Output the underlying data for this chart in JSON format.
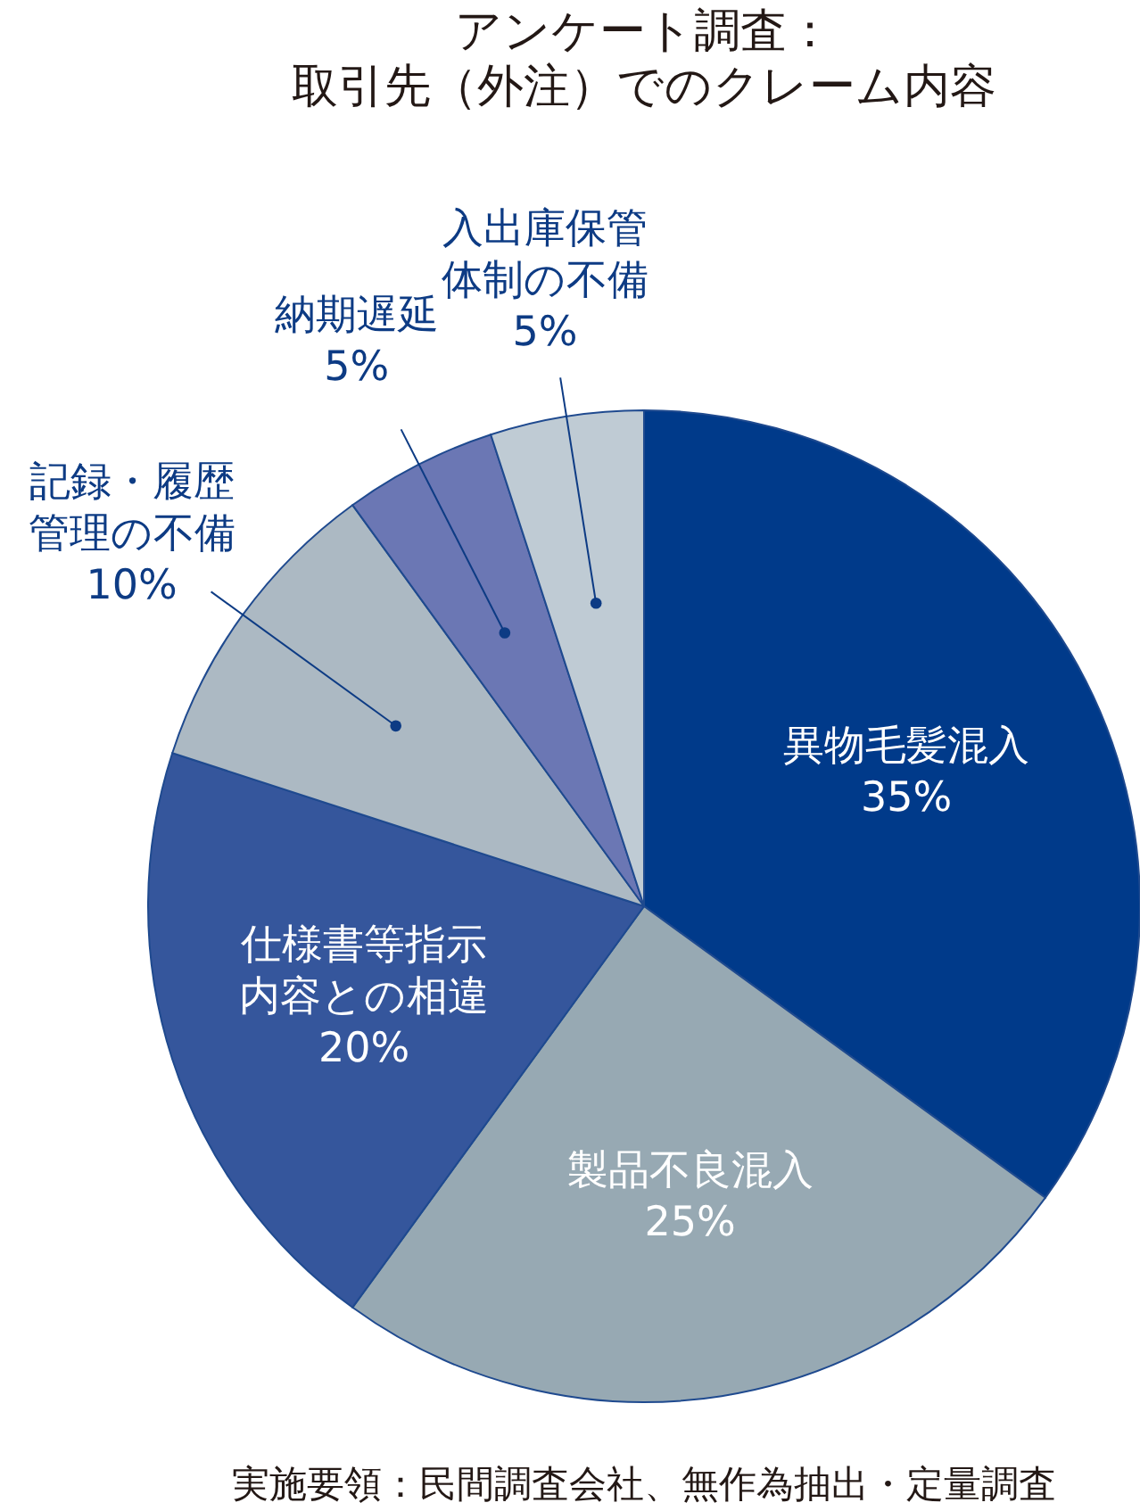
{
  "chart_data": {
    "type": "pie",
    "title": "アンケート調査：取引先（外注）でのクレーム内容",
    "categories": [
      "異物毛髪混入",
      "製品不良混入",
      "仕様書等指示内容との相違",
      "記録・履歴管理の不備",
      "納期遅延",
      "入出庫保管体制の不備"
    ],
    "values": [
      35,
      25,
      20,
      10,
      5,
      5
    ],
    "colors": [
      "#003a8a",
      "#97a9b3",
      "#35569c",
      "#acb9c3",
      "#6b77b4",
      "#bfcbd4"
    ],
    "value_labels": [
      "35%",
      "25%",
      "20%",
      "10%",
      "5%",
      "5%"
    ],
    "annotations": [
      "実施要領：民間調査会社、無作為抽出・定量調査"
    ]
  }
}
